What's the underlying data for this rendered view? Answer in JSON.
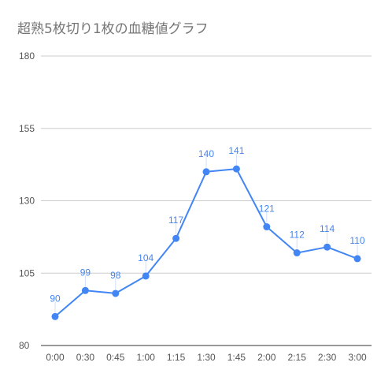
{
  "chart_data": {
    "type": "line",
    "title": "超熟5枚切り1枚の血糖値グラフ",
    "xlabel": "",
    "ylabel": "",
    "categories": [
      "0:00",
      "0:30",
      "0:45",
      "1:00",
      "1:15",
      "1:30",
      "1:45",
      "2:00",
      "2:15",
      "2:30",
      "3:00"
    ],
    "series": [
      {
        "values": [
          90,
          99,
          98,
          104,
          117,
          140,
          141,
          121,
          112,
          114,
          110
        ]
      }
    ],
    "ylim": [
      80,
      180
    ],
    "yticks": [
      "80",
      "105",
      "130",
      "155",
      "180"
    ],
    "ytick_values": [
      80,
      105,
      130,
      155,
      180
    ],
    "grid": true,
    "legend": "none",
    "colors": {
      "line": "#4285f4",
      "grid": "#cccccc",
      "axis": "#333333"
    }
  }
}
